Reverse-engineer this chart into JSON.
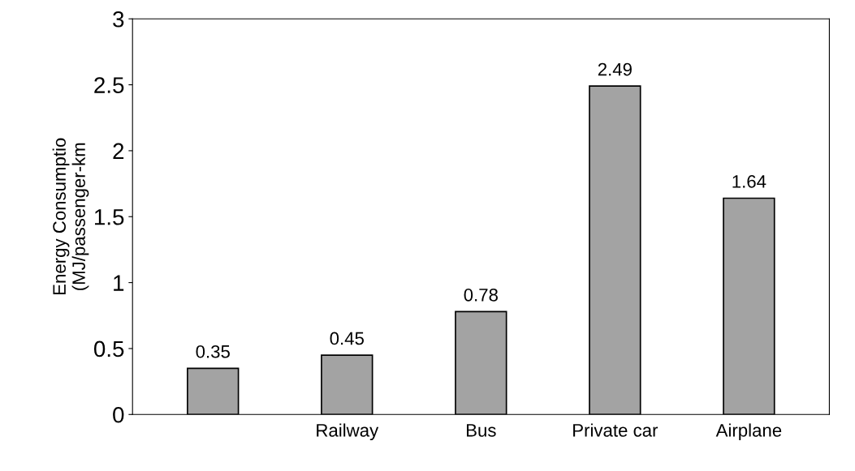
{
  "chart_data": {
    "type": "bar",
    "ylabel": "Energy Consumptio\n(MJ/passenger-km",
    "categories": [
      null,
      "Railway",
      "Bus",
      "Private car",
      "Airplane"
    ],
    "values": [
      0.35,
      0.45,
      0.78,
      2.49,
      1.64
    ],
    "color": "#a3a3a3",
    "ylim": [
      0,
      3
    ],
    "yticks": [
      0,
      0.5,
      1,
      1.5,
      2,
      2.5,
      3
    ],
    "data_labels": true,
    "grid": false,
    "legend": false
  }
}
